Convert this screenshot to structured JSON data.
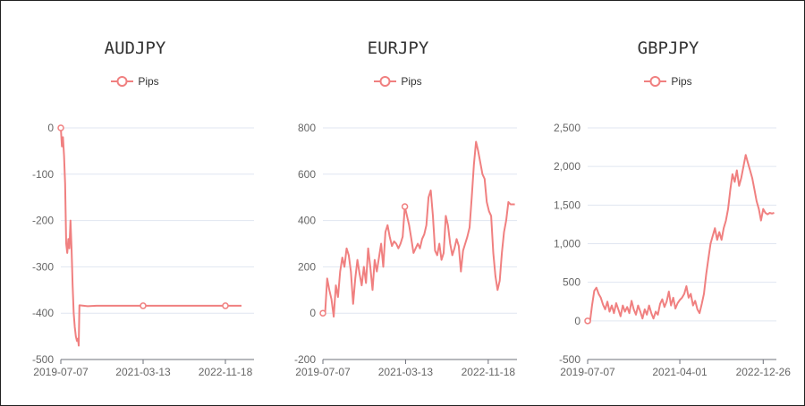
{
  "colors": {
    "series": "#f08080",
    "grid": "#e0e6f1",
    "axis": "#6e7079",
    "text": "#666666"
  },
  "chart_data": [
    {
      "type": "line",
      "title": "AUDJPY",
      "series": [
        {
          "name": "Pips",
          "values": [
            [
              0,
              0
            ],
            [
              3,
              -40
            ],
            [
              6,
              -20
            ],
            [
              9,
              -60
            ],
            [
              12,
              -120
            ],
            [
              15,
              -250
            ],
            [
              18,
              -270
            ],
            [
              21,
              -240
            ],
            [
              24,
              -260
            ],
            [
              27,
              -200
            ],
            [
              30,
              -260
            ],
            [
              33,
              -340
            ],
            [
              36,
              -400
            ],
            [
              39,
              -430
            ],
            [
              42,
              -450
            ],
            [
              45,
              -460
            ],
            [
              48,
              -455
            ],
            [
              50,
              -470
            ],
            [
              52,
              -383
            ],
            [
              75,
              -385
            ],
            [
              100,
              -384
            ],
            [
              160,
              -384
            ],
            [
              220,
              -384
            ],
            [
              290,
              -384
            ],
            [
              320,
              -384
            ],
            [
              360,
              -384
            ],
            [
              390,
              -384
            ],
            [
              430,
              -384
            ],
            [
              470,
              -384
            ],
            [
              505,
              -384
            ]
          ]
        }
      ],
      "x_ticks": [
        {
          "v": 0,
          "label": "2019-07-07"
        },
        {
          "v": 230,
          "label": "2021-03-13"
        },
        {
          "v": 460,
          "label": "2022-11-18"
        }
      ],
      "x_max": 540,
      "y_ticks": [
        {
          "v": 0,
          "label": "0"
        },
        {
          "v": -100,
          "label": "-100"
        },
        {
          "v": -200,
          "label": "-200"
        },
        {
          "v": -300,
          "label": "-300"
        },
        {
          "v": -400,
          "label": "-400"
        },
        {
          "v": -500,
          "label": "-500"
        }
      ],
      "ylim": [
        -500,
        0
      ],
      "markers": [
        0,
        230,
        460
      ]
    },
    {
      "type": "line",
      "title": "EURJPY",
      "series": [
        {
          "name": "Pips",
          "values": [
            [
              0,
              0
            ],
            [
              6,
              -5
            ],
            [
              12,
              150
            ],
            [
              18,
              100
            ],
            [
              24,
              60
            ],
            [
              30,
              -15
            ],
            [
              36,
              120
            ],
            [
              42,
              70
            ],
            [
              48,
              180
            ],
            [
              54,
              240
            ],
            [
              60,
              200
            ],
            [
              66,
              280
            ],
            [
              72,
              250
            ],
            [
              78,
              180
            ],
            [
              84,
              40
            ],
            [
              90,
              150
            ],
            [
              96,
              230
            ],
            [
              102,
              170
            ],
            [
              108,
              120
            ],
            [
              114,
              200
            ],
            [
              120,
              130
            ],
            [
              126,
              280
            ],
            [
              132,
              200
            ],
            [
              138,
              100
            ],
            [
              144,
              230
            ],
            [
              150,
              180
            ],
            [
              156,
              240
            ],
            [
              162,
              300
            ],
            [
              168,
              200
            ],
            [
              174,
              350
            ],
            [
              180,
              380
            ],
            [
              186,
              330
            ],
            [
              192,
              290
            ],
            [
              198,
              310
            ],
            [
              204,
              300
            ],
            [
              210,
              280
            ],
            [
              216,
              300
            ],
            [
              222,
              330
            ],
            [
              228,
              460
            ],
            [
              234,
              420
            ],
            [
              240,
              380
            ],
            [
              246,
              320
            ],
            [
              252,
              260
            ],
            [
              258,
              280
            ],
            [
              264,
              300
            ],
            [
              270,
              280
            ],
            [
              276,
              320
            ],
            [
              282,
              340
            ],
            [
              288,
              380
            ],
            [
              294,
              500
            ],
            [
              300,
              530
            ],
            [
              306,
              420
            ],
            [
              312,
              270
            ],
            [
              318,
              250
            ],
            [
              324,
              300
            ],
            [
              330,
              230
            ],
            [
              336,
              260
            ],
            [
              342,
              420
            ],
            [
              348,
              380
            ],
            [
              354,
              300
            ],
            [
              360,
              250
            ],
            [
              366,
              280
            ],
            [
              372,
              320
            ],
            [
              378,
              290
            ],
            [
              384,
              180
            ],
            [
              390,
              270
            ],
            [
              396,
              300
            ],
            [
              402,
              330
            ],
            [
              408,
              370
            ],
            [
              414,
              500
            ],
            [
              420,
              640
            ],
            [
              426,
              740
            ],
            [
              432,
              700
            ],
            [
              438,
              650
            ],
            [
              444,
              600
            ],
            [
              450,
              580
            ],
            [
              456,
              480
            ],
            [
              462,
              440
            ],
            [
              468,
              420
            ],
            [
              474,
              260
            ],
            [
              480,
              160
            ],
            [
              486,
              100
            ],
            [
              492,
              140
            ],
            [
              498,
              260
            ],
            [
              504,
              350
            ],
            [
              510,
              400
            ],
            [
              516,
              480
            ],
            [
              522,
              470
            ],
            [
              528,
              470
            ],
            [
              534,
              470
            ]
          ]
        }
      ],
      "x_ticks": [
        {
          "v": 0,
          "label": "2019-07-07"
        },
        {
          "v": 230,
          "label": "2021-03-13"
        },
        {
          "v": 460,
          "label": "2022-11-18"
        }
      ],
      "x_max": 540,
      "y_ticks": [
        {
          "v": -200,
          "label": "-200"
        },
        {
          "v": 0,
          "label": "0"
        },
        {
          "v": 200,
          "label": "200"
        },
        {
          "v": 400,
          "label": "400"
        },
        {
          "v": 600,
          "label": "600"
        },
        {
          "v": 800,
          "label": "800"
        }
      ],
      "ylim": [
        -200,
        800
      ],
      "markers": [
        0,
        228
      ]
    },
    {
      "type": "line",
      "title": "GBPJPY",
      "series": [
        {
          "name": "Pips",
          "values": [
            [
              0,
              0
            ],
            [
              5,
              -20
            ],
            [
              10,
              200
            ],
            [
              15,
              390
            ],
            [
              20,
              430
            ],
            [
              25,
              350
            ],
            [
              30,
              300
            ],
            [
              35,
              210
            ],
            [
              40,
              150
            ],
            [
              45,
              250
            ],
            [
              50,
              120
            ],
            [
              55,
              200
            ],
            [
              60,
              100
            ],
            [
              65,
              230
            ],
            [
              70,
              150
            ],
            [
              75,
              60
            ],
            [
              80,
              200
            ],
            [
              85,
              120
            ],
            [
              90,
              180
            ],
            [
              95,
              100
            ],
            [
              100,
              260
            ],
            [
              105,
              150
            ],
            [
              110,
              80
            ],
            [
              115,
              200
            ],
            [
              120,
              120
            ],
            [
              125,
              30
            ],
            [
              130,
              150
            ],
            [
              135,
              80
            ],
            [
              140,
              200
            ],
            [
              145,
              100
            ],
            [
              150,
              30
            ],
            [
              155,
              120
            ],
            [
              160,
              80
            ],
            [
              165,
              220
            ],
            [
              170,
              280
            ],
            [
              175,
              180
            ],
            [
              180,
              250
            ],
            [
              185,
              380
            ],
            [
              190,
              200
            ],
            [
              195,
              300
            ],
            [
              200,
              160
            ],
            [
              205,
              230
            ],
            [
              210,
              270
            ],
            [
              215,
              300
            ],
            [
              220,
              350
            ],
            [
              225,
              450
            ],
            [
              230,
              300
            ],
            [
              235,
              350
            ],
            [
              240,
              200
            ],
            [
              245,
              260
            ],
            [
              250,
              150
            ],
            [
              255,
              100
            ],
            [
              260,
              220
            ],
            [
              265,
              350
            ],
            [
              270,
              600
            ],
            [
              275,
              800
            ],
            [
              280,
              1000
            ],
            [
              285,
              1100
            ],
            [
              290,
              1200
            ],
            [
              295,
              1050
            ],
            [
              300,
              1150
            ],
            [
              305,
              1050
            ],
            [
              310,
              1200
            ],
            [
              315,
              1300
            ],
            [
              320,
              1450
            ],
            [
              325,
              1700
            ],
            [
              330,
              1900
            ],
            [
              335,
              1800
            ],
            [
              340,
              1950
            ],
            [
              345,
              1750
            ],
            [
              350,
              1850
            ],
            [
              355,
              2000
            ],
            [
              360,
              2150
            ],
            [
              365,
              2050
            ],
            [
              370,
              1950
            ],
            [
              375,
              1850
            ],
            [
              380,
              1700
            ],
            [
              385,
              1550
            ],
            [
              390,
              1450
            ],
            [
              395,
              1300
            ],
            [
              400,
              1450
            ],
            [
              405,
              1400
            ],
            [
              410,
              1380
            ],
            [
              415,
              1400
            ],
            [
              420,
              1390
            ],
            [
              425,
              1400
            ]
          ]
        }
      ],
      "x_ticks": [
        {
          "v": 0,
          "label": "2019-07-07"
        },
        {
          "v": 210,
          "label": "2021-04-01"
        },
        {
          "v": 400,
          "label": "2022-12-26"
        }
      ],
      "x_max": 430,
      "y_ticks": [
        {
          "v": -500,
          "label": "-500"
        },
        {
          "v": 0,
          "label": "0"
        },
        {
          "v": 500,
          "label": "500"
        },
        {
          "v": 1000,
          "label": "1,000"
        },
        {
          "v": 1500,
          "label": "1,500"
        },
        {
          "v": 2000,
          "label": "2,000"
        },
        {
          "v": 2500,
          "label": "2,500"
        }
      ],
      "ylim": [
        -500,
        2500
      ],
      "markers": [
        0
      ]
    }
  ]
}
